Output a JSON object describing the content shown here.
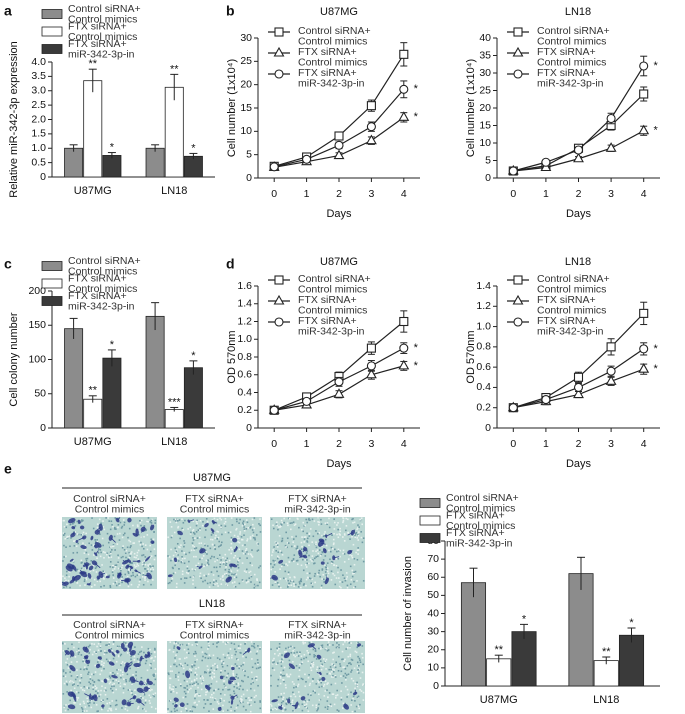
{
  "chart_data": [
    {
      "type": "bar",
      "panel": "a",
      "ylabel": "Relative miR-342-3p expression",
      "categories": [
        "U87MG",
        "LN18"
      ],
      "ylim": [
        0,
        4
      ],
      "yticks": [
        0,
        0.5,
        {
          "value": 1,
          "label": "1.0"
        },
        1.5,
        {
          "value": 2,
          "label": "2.0"
        },
        2.5,
        {
          "value": 3,
          "label": "3.0"
        },
        3.5,
        {
          "value": 4,
          "label": "4.0"
        }
      ],
      "series": [
        {
          "name": "Control siRNA+\nControl mimics",
          "color": "#8c8c8c",
          "values": [
            1.0,
            1.0
          ],
          "errors": [
            0.12,
            0.12
          ],
          "annotations": [
            null,
            null
          ]
        },
        {
          "name": "FTX siRNA+\nControl mimics",
          "color": "#ffffff",
          "values": [
            3.35,
            3.12
          ],
          "errors": [
            0.4,
            0.45
          ],
          "annotations": [
            "**",
            "**"
          ]
        },
        {
          "name": "FTX siRNA+\nmiR-342-3p-in",
          "color": "#3a3a3a",
          "values": [
            0.75,
            0.72
          ],
          "errors": [
            0.1,
            0.1
          ],
          "annotations": [
            "*",
            "*"
          ]
        }
      ]
    },
    {
      "type": "line",
      "panel": "b",
      "title": "U87MG",
      "xlabel": "Days",
      "ylabel": "Cell number (1x10⁴)",
      "x": [
        0,
        1,
        2,
        3,
        4
      ],
      "xlim": [
        -0.5,
        4.5
      ],
      "xticks": [
        0,
        1,
        2,
        3,
        4
      ],
      "ylim": [
        0,
        30
      ],
      "yticks": [
        0,
        5,
        10,
        15,
        20,
        25,
        30
      ],
      "series": [
        {
          "name": "Control siRNA+\nControl mimics",
          "color": "#222222",
          "marker": "square",
          "values": [
            2.5,
            4.5,
            9,
            15.5,
            26.5
          ],
          "errors": [
            0.3,
            0.5,
            0.8,
            1.2,
            2.5
          ],
          "annotations": [
            null,
            null,
            null,
            null,
            null
          ]
        },
        {
          "name": "FTX siRNA+\nControl mimics",
          "color": "#222222",
          "marker": "triangle",
          "values": [
            2.3,
            3.5,
            4.8,
            8,
            13
          ],
          "errors": [
            0.3,
            0.4,
            0.6,
            0.8,
            1
          ],
          "annotations": [
            null,
            null,
            null,
            null,
            "*"
          ]
        },
        {
          "name": "FTX siRNA+\nmiR-342-3p-in",
          "color": "#222222",
          "marker": "circle",
          "values": [
            2.4,
            4,
            7,
            11,
            19
          ],
          "errors": [
            0.3,
            0.4,
            0.7,
            1,
            1.8
          ],
          "annotations": [
            null,
            null,
            null,
            null,
            "*"
          ]
        }
      ]
    },
    {
      "type": "line",
      "title": "LN18",
      "xlabel": "Days",
      "ylabel": "Cell number (1x10⁴)",
      "x": [
        0,
        1,
        2,
        3,
        4
      ],
      "xlim": [
        -0.5,
        4.5
      ],
      "xticks": [
        0,
        1,
        2,
        3,
        4
      ],
      "ylim": [
        0,
        40
      ],
      "yticks": [
        0,
        5,
        10,
        15,
        20,
        25,
        30,
        35,
        40
      ],
      "series": [
        {
          "name": "Control siRNA+\nControl mimics",
          "color": "#222222",
          "marker": "square",
          "values": [
            2,
            3.5,
            8.5,
            15,
            24
          ],
          "errors": [
            0.3,
            0.4,
            0.8,
            1.3,
            2
          ],
          "annotations": [
            null,
            null,
            null,
            null,
            null
          ]
        },
        {
          "name": "FTX siRNA+\nControl mimics",
          "color": "#222222",
          "marker": "triangle",
          "values": [
            2,
            3,
            5.5,
            8.5,
            13.5
          ],
          "errors": [
            0.3,
            0.3,
            0.6,
            0.9,
            1.3
          ],
          "annotations": [
            null,
            null,
            null,
            null,
            "*"
          ]
        },
        {
          "name": "FTX siRNA+\nmiR-342-3p-in",
          "color": "#222222",
          "marker": "circle",
          "values": [
            2,
            4.5,
            8,
            17,
            32
          ],
          "errors": [
            0.3,
            0.4,
            0.8,
            1.5,
            2.8
          ],
          "annotations": [
            null,
            null,
            null,
            null,
            "*"
          ]
        }
      ]
    },
    {
      "type": "bar",
      "panel": "c",
      "ylabel": "Cell colony number",
      "categories": [
        "U87MG",
        "LN18"
      ],
      "ylim": [
        0,
        200
      ],
      "yticks": [
        0,
        50,
        100,
        150,
        200
      ],
      "series": [
        {
          "name": "Control siRNA+\nControl mimics",
          "color": "#8c8c8c",
          "values": [
            145,
            163
          ],
          "errors": [
            15,
            20
          ],
          "annotations": [
            null,
            null
          ]
        },
        {
          "name": "FTX siRNA+\nControl mimics",
          "color": "#ffffff",
          "values": [
            42,
            27
          ],
          "errors": [
            5,
            3
          ],
          "annotations": [
            "**",
            "***"
          ]
        },
        {
          "name": "FTX siRNA+\nmiR-342-3p-in",
          "color": "#3a3a3a",
          "values": [
            102,
            88
          ],
          "errors": [
            12,
            10
          ],
          "annotations": [
            "*",
            "*"
          ]
        }
      ]
    },
    {
      "type": "line",
      "panel": "d",
      "title": "U87MG",
      "xlabel": "Days",
      "ylabel": "OD 570nm",
      "x": [
        0,
        1,
        2,
        3,
        4
      ],
      "xlim": [
        -0.5,
        4.5
      ],
      "xticks": [
        0,
        1,
        2,
        3,
        4
      ],
      "ylim": [
        0,
        1.6
      ],
      "yticks": [
        0,
        0.2,
        0.4,
        0.6,
        0.8,
        {
          "value": 1,
          "label": "1.0"
        },
        1.2,
        1.4,
        1.6
      ],
      "series": [
        {
          "name": "Control siRNA+\nControl mimics",
          "color": "#222222",
          "marker": "square",
          "values": [
            0.2,
            0.35,
            0.58,
            0.9,
            1.2
          ],
          "errors": [
            0.03,
            0.04,
            0.05,
            0.07,
            0.12
          ],
          "annotations": [
            null,
            null,
            null,
            null,
            null
          ]
        },
        {
          "name": "FTX siRNA+\nControl mimics",
          "color": "#222222",
          "marker": "triangle",
          "values": [
            0.2,
            0.26,
            0.38,
            0.6,
            0.7
          ],
          "errors": [
            0.02,
            0.03,
            0.04,
            0.05,
            0.05
          ],
          "annotations": [
            null,
            null,
            null,
            null,
            "*"
          ]
        },
        {
          "name": "FTX siRNA+\nmiR-342-3p-in",
          "color": "#222222",
          "marker": "circle",
          "values": [
            0.2,
            0.3,
            0.52,
            0.7,
            0.9
          ],
          "errors": [
            0.02,
            0.03,
            0.05,
            0.06,
            0.06
          ],
          "annotations": [
            null,
            null,
            null,
            null,
            "*"
          ]
        }
      ]
    },
    {
      "type": "line",
      "title": "LN18",
      "xlabel": "Days",
      "ylabel": "OD 570nm",
      "x": [
        0,
        1,
        2,
        3,
        4
      ],
      "xlim": [
        -0.5,
        4.5
      ],
      "xticks": [
        0,
        1,
        2,
        3,
        4
      ],
      "ylim": [
        0,
        1.4
      ],
      "yticks": [
        0,
        0.2,
        0.4,
        0.6,
        0.8,
        {
          "value": 1,
          "label": "1.0"
        },
        1.2,
        1.4
      ],
      "series": [
        {
          "name": "Control siRNA+\nControl mimics",
          "color": "#222222",
          "marker": "square",
          "values": [
            0.2,
            0.3,
            0.5,
            0.8,
            1.13
          ],
          "errors": [
            0.03,
            0.04,
            0.05,
            0.08,
            0.11
          ],
          "annotations": [
            null,
            null,
            null,
            null,
            null
          ]
        },
        {
          "name": "FTX siRNA+\nControl mimics",
          "color": "#222222",
          "marker": "triangle",
          "values": [
            0.2,
            0.26,
            0.33,
            0.46,
            0.58
          ],
          "errors": [
            0.02,
            0.03,
            0.03,
            0.04,
            0.05
          ],
          "annotations": [
            null,
            null,
            null,
            null,
            "*"
          ]
        },
        {
          "name": "FTX siRNA+\nmiR-342-3p-in",
          "color": "#222222",
          "marker": "circle",
          "values": [
            0.2,
            0.28,
            0.4,
            0.56,
            0.78
          ],
          "errors": [
            0.02,
            0.03,
            0.04,
            0.05,
            0.06
          ],
          "annotations": [
            null,
            null,
            null,
            null,
            "*"
          ]
        }
      ]
    },
    {
      "type": "bar",
      "panel": "e",
      "ylabel": "Cell number of invasion",
      "categories": [
        "U87MG",
        "LN18"
      ],
      "ylim": [
        0,
        80
      ],
      "yticks": [
        0,
        10,
        20,
        30,
        40,
        50,
        60,
        70,
        80
      ],
      "series": [
        {
          "name": "Control siRNA+\nControl mimics",
          "color": "#8c8c8c",
          "values": [
            57,
            62
          ],
          "errors": [
            8,
            9
          ],
          "annotations": [
            null,
            null
          ]
        },
        {
          "name": "FTX siRNA+\nControl mimics",
          "color": "#ffffff",
          "values": [
            15,
            14
          ],
          "errors": [
            2,
            2
          ],
          "annotations": [
            "**",
            "**"
          ]
        },
        {
          "name": "FTX siRNA+\nmiR-342-3p-in",
          "color": "#3a3a3a",
          "values": [
            30,
            28
          ],
          "errors": [
            4,
            4
          ],
          "annotations": [
            "*",
            "*"
          ]
        }
      ]
    }
  ],
  "micrographs": {
    "rows": [
      {
        "label": "U87MG",
        "columns": [
          "Control siRNA+\nControl mimics",
          "FTX siRNA+\nControl mimics",
          "FTX siRNA+\nmiR-342-3p-in"
        ]
      },
      {
        "label": "LN18",
        "columns": [
          "Control siRNA+\nControl mimics",
          "FTX siRNA+\nControl mimics",
          "FTX siRNA+\nmiR-342-3p-in"
        ]
      }
    ]
  }
}
